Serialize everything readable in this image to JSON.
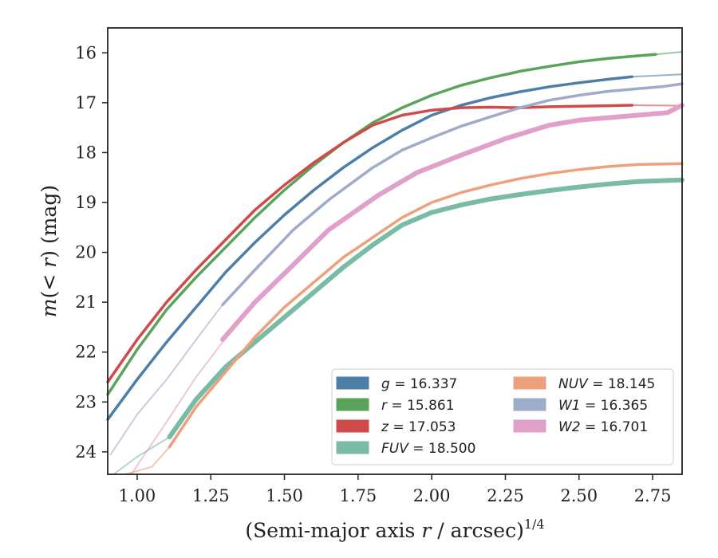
{
  "chart_data": {
    "type": "line",
    "xlabel": "(Semi-major axis r / arcsec)",
    "xlabel_prefix": "(Semi-major axis ",
    "xlabel_var": "r",
    "xlabel_suffix": " / arcsec)",
    "xlabel_exp": "1/4",
    "ylabel": "m(< r) (mag)",
    "xlim": [
      0.9,
      2.85
    ],
    "ylim": [
      24.45,
      15.5
    ],
    "y_inverted": true,
    "grid": false,
    "legend_position": "lower-right",
    "x_ticks": [
      1.0,
      1.25,
      1.5,
      1.75,
      2.0,
      2.25,
      2.5,
      2.75
    ],
    "x_tick_labels": [
      "1.00",
      "1.25",
      "1.50",
      "1.75",
      "2.00",
      "2.25",
      "2.50",
      "2.75"
    ],
    "y_ticks": [
      16,
      17,
      18,
      19,
      20,
      21,
      22,
      23,
      24
    ],
    "y_tick_labels": [
      "16",
      "17",
      "18",
      "19",
      "20",
      "21",
      "22",
      "23",
      "24"
    ],
    "series": [
      {
        "name": "g = 16.337",
        "var": "g",
        "value": "16.337",
        "color": "#4c7ea8",
        "faint_points": [
          [
            2.68,
            16.48
          ],
          [
            2.85,
            16.43
          ]
        ],
        "points": [
          [
            0.9,
            23.35
          ],
          [
            1.0,
            22.55
          ],
          [
            1.1,
            21.8
          ],
          [
            1.2,
            21.1
          ],
          [
            1.3,
            20.4
          ],
          [
            1.4,
            19.8
          ],
          [
            1.5,
            19.25
          ],
          [
            1.6,
            18.75
          ],
          [
            1.7,
            18.3
          ],
          [
            1.8,
            17.9
          ],
          [
            1.9,
            17.55
          ],
          [
            2.0,
            17.25
          ],
          [
            2.1,
            17.05
          ],
          [
            2.2,
            16.9
          ],
          [
            2.3,
            16.78
          ],
          [
            2.4,
            16.68
          ],
          [
            2.5,
            16.6
          ],
          [
            2.6,
            16.53
          ],
          [
            2.68,
            16.48
          ]
        ]
      },
      {
        "name": "r = 15.861",
        "var": "r",
        "value": "15.861",
        "color": "#5ba35b",
        "faint_points": [
          [
            2.76,
            16.03
          ],
          [
            2.85,
            15.98
          ]
        ],
        "points": [
          [
            0.9,
            22.85
          ],
          [
            1.0,
            21.95
          ],
          [
            1.1,
            21.15
          ],
          [
            1.2,
            20.5
          ],
          [
            1.3,
            19.9
          ],
          [
            1.4,
            19.3
          ],
          [
            1.5,
            18.75
          ],
          [
            1.6,
            18.25
          ],
          [
            1.7,
            17.8
          ],
          [
            1.8,
            17.4
          ],
          [
            1.9,
            17.1
          ],
          [
            2.0,
            16.85
          ],
          [
            2.1,
            16.65
          ],
          [
            2.2,
            16.5
          ],
          [
            2.3,
            16.37
          ],
          [
            2.4,
            16.27
          ],
          [
            2.5,
            16.18
          ],
          [
            2.6,
            16.11
          ],
          [
            2.7,
            16.06
          ],
          [
            2.76,
            16.03
          ]
        ]
      },
      {
        "name": "z = 17.053",
        "var": "z",
        "value": "17.053",
        "color": "#d04a4a",
        "faint_points": [
          [
            2.68,
            17.05
          ],
          [
            2.85,
            17.06
          ]
        ],
        "points": [
          [
            0.9,
            22.6
          ],
          [
            1.0,
            21.75
          ],
          [
            1.1,
            21.0
          ],
          [
            1.2,
            20.35
          ],
          [
            1.3,
            19.75
          ],
          [
            1.4,
            19.15
          ],
          [
            1.5,
            18.65
          ],
          [
            1.6,
            18.2
          ],
          [
            1.7,
            17.8
          ],
          [
            1.8,
            17.45
          ],
          [
            1.9,
            17.25
          ],
          [
            2.0,
            17.15
          ],
          [
            2.1,
            17.1
          ],
          [
            2.2,
            17.09
          ],
          [
            2.3,
            17.1
          ],
          [
            2.4,
            17.08
          ],
          [
            2.5,
            17.07
          ],
          [
            2.6,
            17.06
          ],
          [
            2.68,
            17.05
          ]
        ]
      },
      {
        "name": "FUV = 18.500",
        "var": "FUV",
        "value": "18.500",
        "color": "#79bba4",
        "faint_points": [
          [
            0.92,
            24.45
          ],
          [
            1.0,
            24.1
          ],
          [
            1.11,
            23.7
          ]
        ],
        "points": [
          [
            1.11,
            23.7
          ],
          [
            1.2,
            22.95
          ],
          [
            1.3,
            22.3
          ],
          [
            1.4,
            21.8
          ],
          [
            1.5,
            21.3
          ],
          [
            1.6,
            20.8
          ],
          [
            1.7,
            20.3
          ],
          [
            1.8,
            19.85
          ],
          [
            1.9,
            19.45
          ],
          [
            2.0,
            19.2
          ],
          [
            2.1,
            19.05
          ],
          [
            2.2,
            18.93
          ],
          [
            2.3,
            18.84
          ],
          [
            2.4,
            18.76
          ],
          [
            2.5,
            18.69
          ],
          [
            2.6,
            18.63
          ],
          [
            2.7,
            18.58
          ],
          [
            2.85,
            18.55
          ]
        ]
      },
      {
        "name": "NUV = 18.145",
        "var": "NUV",
        "value": "18.145",
        "color": "#eea07d",
        "faint_points": [
          [
            0.96,
            24.45
          ],
          [
            1.05,
            24.3
          ],
          [
            1.11,
            23.9
          ]
        ],
        "points": [
          [
            1.11,
            23.9
          ],
          [
            1.2,
            23.1
          ],
          [
            1.3,
            22.4
          ],
          [
            1.4,
            21.7
          ],
          [
            1.5,
            21.1
          ],
          [
            1.6,
            20.6
          ],
          [
            1.7,
            20.1
          ],
          [
            1.8,
            19.7
          ],
          [
            1.9,
            19.3
          ],
          [
            2.0,
            19.0
          ],
          [
            2.1,
            18.8
          ],
          [
            2.2,
            18.65
          ],
          [
            2.3,
            18.52
          ],
          [
            2.4,
            18.42
          ],
          [
            2.5,
            18.34
          ],
          [
            2.6,
            18.28
          ],
          [
            2.7,
            18.24
          ],
          [
            2.85,
            18.22
          ]
        ]
      },
      {
        "name": "W1 = 16.365",
        "var": "W1",
        "value": "16.365",
        "color": "#9eabc9",
        "faint_points": [
          [
            0.91,
            24.05
          ],
          [
            1.0,
            23.25
          ],
          [
            1.1,
            22.55
          ],
          [
            1.2,
            21.75
          ],
          [
            1.29,
            21.05
          ]
        ],
        "points": [
          [
            1.29,
            21.05
          ],
          [
            1.4,
            20.35
          ],
          [
            1.53,
            19.55
          ],
          [
            1.65,
            18.95
          ],
          [
            1.8,
            18.3
          ],
          [
            1.9,
            17.95
          ],
          [
            2.0,
            17.7
          ],
          [
            2.1,
            17.47
          ],
          [
            2.2,
            17.28
          ],
          [
            2.3,
            17.1
          ],
          [
            2.4,
            16.95
          ],
          [
            2.5,
            16.85
          ],
          [
            2.6,
            16.77
          ],
          [
            2.7,
            16.72
          ],
          [
            2.78,
            16.68
          ],
          [
            2.85,
            16.62
          ]
        ]
      },
      {
        "name": "W2 = 16.701",
        "var": "W2",
        "value": "16.701",
        "color": "#e0a0ca",
        "faint_points": [
          [
            0.98,
            24.45
          ],
          [
            1.1,
            23.4
          ],
          [
            1.2,
            22.5
          ],
          [
            1.29,
            21.8
          ]
        ],
        "points": [
          [
            1.29,
            21.75
          ],
          [
            1.4,
            21.0
          ],
          [
            1.53,
            20.25
          ],
          [
            1.65,
            19.55
          ],
          [
            1.82,
            18.85
          ],
          [
            1.95,
            18.4
          ],
          [
            2.1,
            18.05
          ],
          [
            2.25,
            17.72
          ],
          [
            2.4,
            17.45
          ],
          [
            2.5,
            17.35
          ],
          [
            2.6,
            17.3
          ],
          [
            2.7,
            17.25
          ],
          [
            2.8,
            17.2
          ],
          [
            2.85,
            17.05
          ]
        ]
      }
    ]
  }
}
